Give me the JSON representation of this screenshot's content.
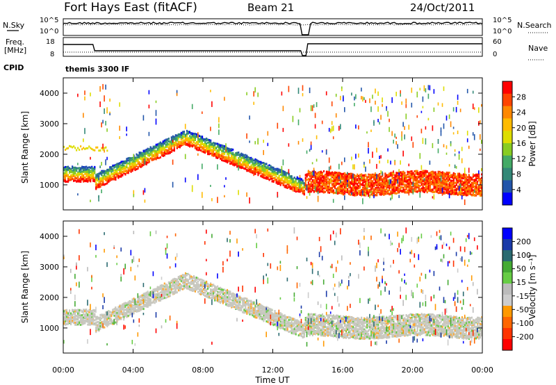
{
  "header": {
    "station": "Fort Hays East (fitACF)",
    "beam": "Beam 21",
    "date": "24/Oct/2011"
  },
  "noise_panel": {
    "left_label": "N.Sky",
    "left_ticks": [
      "10^5",
      "10^0"
    ],
    "right_label": "N.Search",
    "right_ticks": [
      "10^5",
      "10^0"
    ]
  },
  "freq_panel": {
    "left_label_1": "Freq.",
    "left_label_2": "[MHz]",
    "left_ticks": [
      "18",
      "8"
    ],
    "right_label": "Nave",
    "right_ticks": [
      "60",
      "0"
    ],
    "cpid_label": "CPID",
    "cpid_text": "themis 3300 IF"
  },
  "chart_data": [
    {
      "type": "heatmap",
      "name": "Power",
      "ylabel": "Slant Range [km]",
      "ylim": [
        180,
        4500
      ],
      "yticks": [
        "1000",
        "2000",
        "3000",
        "4000"
      ],
      "xlim": [
        0,
        24
      ],
      "colorbar_label": "Power [dB]",
      "colorbar_ticks": [
        "28",
        "24",
        "20",
        "16",
        "12",
        "8",
        "4"
      ],
      "colorbar_colors": [
        "#ff0000",
        "#ff4400",
        "#ff8800",
        "#ffbb00",
        "#dddd00",
        "#88cc22",
        "#44aa66",
        "#338877",
        "#2255aa",
        "#0000ff"
      ]
    },
    {
      "type": "heatmap",
      "name": "Velocity",
      "ylabel": "Slant Range [km]",
      "ylim": [
        180,
        4500
      ],
      "yticks": [
        "1000",
        "2000",
        "3000",
        "4000"
      ],
      "xlim": [
        0,
        24
      ],
      "xticks": [
        "00:00",
        "04:00",
        "08:00",
        "12:00",
        "16:00",
        "20:00",
        "00:00"
      ],
      "xlabel": "Time UT",
      "colorbar_label": "Velocity [m s⁻¹]",
      "colorbar_ticks": [
        "200",
        "100",
        "50",
        "15",
        "-15",
        "-50",
        "-100",
        "-200"
      ],
      "colorbar_colors": [
        "#0000ff",
        "#1a3aa8",
        "#2a6a70",
        "#44aa33",
        "#66cc44",
        "#bbbbbb",
        "#cccccc",
        "#ff9900",
        "#ff6600",
        "#ff3300",
        "#ff0000"
      ]
    }
  ]
}
